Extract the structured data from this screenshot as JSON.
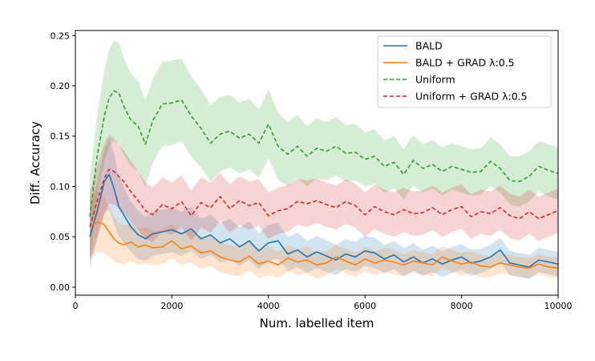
{
  "chart_data": {
    "type": "line",
    "title": "",
    "xlabel": "Num. labelled item",
    "ylabel": "Diff. Accuracy",
    "xlim": [
      0,
      10000
    ],
    "ylim": [
      -0.008,
      0.255
    ],
    "xticks": [
      0,
      2000,
      4000,
      6000,
      8000,
      10000
    ],
    "xtick_labels": [
      "0",
      "2000",
      "4000",
      "6000",
      "8000",
      "10000"
    ],
    "yticks": [
      0.0,
      0.05,
      0.1,
      0.15,
      0.2,
      0.25
    ],
    "ytick_labels": [
      "0.00",
      "0.05",
      "0.10",
      "0.15",
      "0.20",
      "0.25"
    ],
    "grid": false,
    "legend_position": "top-right",
    "series": [
      {
        "name": "BALD",
        "color": "#1f77b4",
        "dash": "solid",
        "x": [
          300,
          450,
          600,
          700,
          800,
          900,
          1000,
          1150,
          1300,
          1450,
          1600,
          1800,
          2000,
          2200,
          2400,
          2600,
          2800,
          3000,
          3200,
          3400,
          3600,
          3800,
          4000,
          4200,
          4400,
          4600,
          4800,
          5000,
          5200,
          5400,
          5600,
          5800,
          6000,
          6200,
          6400,
          6600,
          6800,
          7000,
          7200,
          7400,
          7600,
          7800,
          8000,
          8200,
          8400,
          8600,
          8800,
          9000,
          9200,
          9400,
          9600,
          9800,
          10000
        ],
        "values": [
          0.05,
          0.075,
          0.105,
          0.112,
          0.098,
          0.08,
          0.072,
          0.06,
          0.052,
          0.048,
          0.053,
          0.055,
          0.057,
          0.053,
          0.058,
          0.048,
          0.052,
          0.044,
          0.048,
          0.04,
          0.046,
          0.036,
          0.044,
          0.046,
          0.033,
          0.037,
          0.03,
          0.035,
          0.031,
          0.027,
          0.033,
          0.03,
          0.036,
          0.034,
          0.028,
          0.032,
          0.025,
          0.03,
          0.024,
          0.028,
          0.023,
          0.027,
          0.03,
          0.024,
          0.026,
          0.03,
          0.037,
          0.024,
          0.022,
          0.02,
          0.027,
          0.025,
          0.023
        ],
        "band": [
          0.03,
          0.028,
          0.032,
          0.035,
          0.035,
          0.03,
          0.028,
          0.025,
          0.024,
          0.022,
          0.022,
          0.022,
          0.022,
          0.022,
          0.022,
          0.02,
          0.02,
          0.02,
          0.02,
          0.019,
          0.019,
          0.018,
          0.018,
          0.018,
          0.017,
          0.017,
          0.016,
          0.016,
          0.016,
          0.015,
          0.015,
          0.015,
          0.015,
          0.015,
          0.014,
          0.014,
          0.014,
          0.014,
          0.013,
          0.013,
          0.013,
          0.013,
          0.013,
          0.013,
          0.012,
          0.012,
          0.012,
          0.012,
          0.012,
          0.012,
          0.012,
          0.012,
          0.012
        ]
      },
      {
        "name": "BALD + GRAD λ:0.5",
        "color": "#ff7f0e",
        "dash": "solid",
        "x": [
          300,
          450,
          600,
          700,
          800,
          900,
          1000,
          1150,
          1300,
          1450,
          1600,
          1800,
          2000,
          2200,
          2400,
          2600,
          2800,
          3000,
          3200,
          3400,
          3600,
          3800,
          4000,
          4200,
          4400,
          4600,
          4800,
          5000,
          5200,
          5400,
          5600,
          5800,
          6000,
          6200,
          6400,
          6600,
          6800,
          7000,
          7200,
          7400,
          7600,
          7800,
          8000,
          8200,
          8400,
          8600,
          8800,
          9000,
          9200,
          9400,
          9600,
          9800,
          10000
        ],
        "values": [
          0.06,
          0.065,
          0.062,
          0.055,
          0.048,
          0.044,
          0.042,
          0.045,
          0.04,
          0.042,
          0.039,
          0.04,
          0.046,
          0.038,
          0.041,
          0.034,
          0.036,
          0.03,
          0.027,
          0.025,
          0.031,
          0.023,
          0.026,
          0.022,
          0.029,
          0.025,
          0.027,
          0.022,
          0.024,
          0.03,
          0.026,
          0.022,
          0.028,
          0.024,
          0.027,
          0.025,
          0.022,
          0.026,
          0.024,
          0.022,
          0.03,
          0.026,
          0.023,
          0.025,
          0.021,
          0.02,
          0.024,
          0.022,
          0.02,
          0.019,
          0.023,
          0.02,
          0.019
        ],
        "band": [
          0.03,
          0.03,
          0.028,
          0.025,
          0.022,
          0.02,
          0.02,
          0.019,
          0.018,
          0.018,
          0.017,
          0.017,
          0.017,
          0.016,
          0.016,
          0.016,
          0.015,
          0.015,
          0.015,
          0.014,
          0.014,
          0.014,
          0.014,
          0.013,
          0.013,
          0.013,
          0.013,
          0.013,
          0.012,
          0.012,
          0.012,
          0.012,
          0.012,
          0.012,
          0.012,
          0.012,
          0.011,
          0.011,
          0.011,
          0.011,
          0.011,
          0.011,
          0.011,
          0.011,
          0.011,
          0.01,
          0.01,
          0.01,
          0.01,
          0.01,
          0.01,
          0.01,
          0.01
        ]
      },
      {
        "name": "Uniform",
        "color": "#2ca02c",
        "dash": "dashed",
        "x": [
          300,
          450,
          600,
          700,
          800,
          900,
          1000,
          1150,
          1300,
          1450,
          1600,
          1800,
          2000,
          2200,
          2400,
          2600,
          2800,
          3000,
          3200,
          3400,
          3600,
          3800,
          4000,
          4200,
          4400,
          4600,
          4800,
          5000,
          5200,
          5400,
          5600,
          5800,
          6000,
          6200,
          6400,
          6600,
          6800,
          7000,
          7200,
          7400,
          7600,
          7800,
          8000,
          8200,
          8400,
          8600,
          8800,
          9000,
          9200,
          9400,
          9600,
          9800,
          10000
        ],
        "values": [
          0.07,
          0.13,
          0.17,
          0.188,
          0.195,
          0.193,
          0.18,
          0.166,
          0.16,
          0.142,
          0.165,
          0.182,
          0.183,
          0.186,
          0.17,
          0.158,
          0.143,
          0.152,
          0.155,
          0.148,
          0.152,
          0.143,
          0.162,
          0.14,
          0.132,
          0.14,
          0.13,
          0.138,
          0.135,
          0.14,
          0.133,
          0.134,
          0.127,
          0.13,
          0.12,
          0.124,
          0.112,
          0.126,
          0.118,
          0.122,
          0.115,
          0.12,
          0.117,
          0.114,
          0.115,
          0.125,
          0.118,
          0.106,
          0.105,
          0.11,
          0.12,
          0.116,
          0.113
        ],
        "band": [
          0.04,
          0.04,
          0.045,
          0.048,
          0.05,
          0.05,
          0.048,
          0.046,
          0.045,
          0.043,
          0.042,
          0.042,
          0.042,
          0.041,
          0.04,
          0.039,
          0.038,
          0.037,
          0.036,
          0.035,
          0.035,
          0.034,
          0.034,
          0.033,
          0.032,
          0.031,
          0.03,
          0.03,
          0.029,
          0.029,
          0.028,
          0.028,
          0.027,
          0.027,
          0.026,
          0.026,
          0.025,
          0.025,
          0.024,
          0.024,
          0.024,
          0.023,
          0.023,
          0.023,
          0.023,
          0.024,
          0.024,
          0.024,
          0.025,
          0.025,
          0.025,
          0.026,
          0.026
        ]
      },
      {
        "name": "Uniform + GRAD λ:0.5",
        "color": "#d62728",
        "dash": "dashed",
        "x": [
          300,
          450,
          600,
          700,
          800,
          900,
          1000,
          1150,
          1300,
          1450,
          1600,
          1800,
          2000,
          2200,
          2400,
          2600,
          2800,
          3000,
          3200,
          3400,
          3600,
          3800,
          4000,
          4200,
          4400,
          4600,
          4800,
          5000,
          5200,
          5400,
          5600,
          5800,
          6000,
          6200,
          6400,
          6600,
          6800,
          7000,
          7200,
          7400,
          7600,
          7800,
          8000,
          8200,
          8400,
          8600,
          8800,
          9000,
          9200,
          9400,
          9600,
          9800,
          10000
        ],
        "values": [
          0.06,
          0.085,
          0.108,
          0.117,
          0.115,
          0.11,
          0.105,
          0.095,
          0.086,
          0.076,
          0.072,
          0.082,
          0.078,
          0.085,
          0.071,
          0.084,
          0.079,
          0.09,
          0.078,
          0.086,
          0.081,
          0.084,
          0.071,
          0.076,
          0.078,
          0.085,
          0.083,
          0.086,
          0.082,
          0.079,
          0.085,
          0.081,
          0.072,
          0.08,
          0.075,
          0.072,
          0.077,
          0.073,
          0.074,
          0.079,
          0.072,
          0.077,
          0.08,
          0.07,
          0.075,
          0.073,
          0.079,
          0.071,
          0.068,
          0.075,
          0.068,
          0.072,
          0.076
        ],
        "band": [
          0.035,
          0.035,
          0.035,
          0.034,
          0.033,
          0.032,
          0.031,
          0.03,
          0.029,
          0.028,
          0.027,
          0.027,
          0.026,
          0.026,
          0.025,
          0.025,
          0.025,
          0.024,
          0.024,
          0.024,
          0.024,
          0.023,
          0.023,
          0.023,
          0.023,
          0.023,
          0.023,
          0.022,
          0.022,
          0.022,
          0.022,
          0.022,
          0.022,
          0.022,
          0.022,
          0.022,
          0.022,
          0.022,
          0.022,
          0.022,
          0.022,
          0.022,
          0.022,
          0.022,
          0.022,
          0.022,
          0.022,
          0.022,
          0.022,
          0.022,
          0.022,
          0.022,
          0.022
        ]
      }
    ]
  }
}
